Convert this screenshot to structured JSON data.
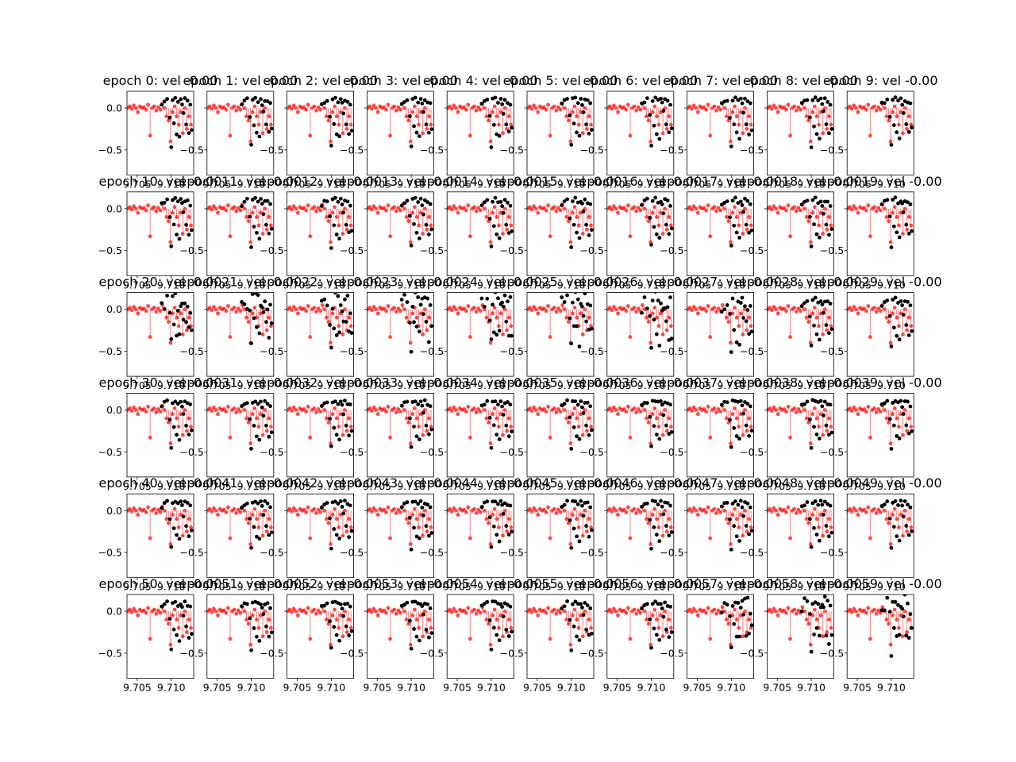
{
  "figure": {
    "background": "#ffffff",
    "truth_color": "#000000",
    "model_color": "#ff0000",
    "rows": 6,
    "cols": 10
  },
  "chart_data": {
    "type": "scatter",
    "grid": false,
    "xlim": [
      9.7035,
      9.7133
    ],
    "ylim": [
      -0.8,
      0.2
    ],
    "x_ticks": [
      9.705,
      9.71
    ],
    "x_tick_labels": [
      "9.705",
      "9.710"
    ],
    "y_ticks": [
      0.0,
      -0.5
    ],
    "left_tick_labels": [
      "0.0",
      "−0.5"
    ],
    "inner_tick_labels": [
      "−0.5"
    ],
    "inner_tick_values": [
      -0.5
    ],
    "epoch_title_prefix": "epoch ",
    "epoch_title_suffix": ": vel -0.00",
    "epochs": [
      0,
      1,
      2,
      3,
      4,
      5,
      6,
      7,
      8,
      9,
      10,
      11,
      12,
      13,
      14,
      15,
      16,
      17,
      18,
      19,
      20,
      21,
      22,
      23,
      24,
      25,
      26,
      27,
      28,
      29,
      30,
      31,
      32,
      33,
      34,
      35,
      36,
      37,
      38,
      39,
      40,
      41,
      42,
      43,
      44,
      45,
      46,
      47,
      48,
      49,
      50,
      51,
      52,
      53,
      54,
      55,
      56,
      57,
      58,
      59
    ],
    "titles": [
      "epoch 0: vel -0.00",
      "epoch 1: vel -0.00",
      "epoch 2: vel -0.00",
      "epoch 3: vel -0.00",
      "epoch 4: vel -0.00",
      "epoch 5: vel -0.00",
      "epoch 6: vel -0.00",
      "epoch 7: vel -0.00",
      "epoch 8: vel -0.00",
      "epoch 9: vel -0.00",
      "epoch 10: vel -0.00",
      "epoch 11: vel -0.00",
      "epoch 12: vel -0.00",
      "epoch 13: vel -0.00",
      "epoch 14: vel -0.00",
      "epoch 15: vel -0.00",
      "epoch 16: vel -0.00",
      "epoch 17: vel -0.00",
      "epoch 18: vel -0.00",
      "epoch 19: vel -0.00",
      "epoch 20: vel -0.00",
      "epoch 21: vel -0.00",
      "epoch 22: vel -0.00",
      "epoch 23: vel -0.00",
      "epoch 24: vel -0.00",
      "epoch 25: vel -0.00",
      "epoch 26: vel -0.00",
      "epoch 27: vel -0.00",
      "epoch 28: vel -0.00",
      "epoch 29: vel -0.00",
      "epoch 30: vel -0.00",
      "epoch 31: vel -0.00",
      "epoch 32: vel -0.00",
      "epoch 33: vel -0.00",
      "epoch 34: vel -0.00",
      "epoch 35: vel -0.00",
      "epoch 36: vel -0.00",
      "epoch 37: vel -0.00",
      "epoch 38: vel -0.00",
      "epoch 39: vel -0.00",
      "epoch 40: vel -0.00",
      "epoch 41: vel -0.00",
      "epoch 42: vel -0.00",
      "epoch 43: vel -0.00",
      "epoch 44: vel -0.00",
      "epoch 45: vel -0.00",
      "epoch 46: vel -0.00",
      "epoch 47: vel -0.00",
      "epoch 48: vel -0.00",
      "epoch 49: vel -0.00",
      "epoch 50: vel -0.00",
      "epoch 51: vel -0.00",
      "epoch 52: vel -0.00",
      "epoch 53: vel -0.00",
      "epoch 54: vel -0.00",
      "epoch 55: vel -0.00",
      "epoch 56: vel -0.00",
      "epoch 57: vel -0.00",
      "epoch 58: vel -0.00",
      "epoch 59: vel -0.00"
    ],
    "series": [
      {
        "role": "model",
        "color": "#ff0000",
        "x": [
          9.7036,
          9.7039,
          9.7042,
          9.7045,
          9.7048,
          9.7051,
          9.7054,
          9.7057,
          9.706,
          9.7063,
          9.7066,
          9.7069,
          9.7072,
          9.7075,
          9.7078,
          9.7081,
          9.7084,
          9.7087,
          9.709,
          9.7093,
          9.7096,
          9.7099,
          9.7102,
          9.7105,
          9.7108,
          9.7111,
          9.7114,
          9.7117,
          9.712,
          9.7123,
          9.7126,
          9.7129
        ],
        "y": [
          0.0,
          0.02,
          -0.01,
          0.03,
          0.0,
          -0.05,
          0.02,
          0.0,
          0.01,
          -0.02,
          0.04,
          -0.33,
          0.0,
          0.02,
          -0.03,
          0.01,
          -0.02,
          0.05,
          0.0,
          -0.1,
          -0.15,
          -0.4,
          -0.05,
          0.02,
          -0.1,
          -0.2,
          -0.05,
          -0.3,
          0.0,
          -0.25,
          -0.1,
          -0.2
        ]
      },
      {
        "role": "observed",
        "color": "#000000",
        "x": [
          9.7086,
          9.709,
          9.7094,
          9.7098,
          9.71,
          9.7102,
          9.7104,
          9.7106,
          9.7108,
          9.711,
          9.7112,
          9.7114,
          9.7116,
          9.7118,
          9.712,
          9.7122,
          9.7124,
          9.7126,
          9.7128,
          9.713
        ],
        "y": [
          0.05,
          0.08,
          0.1,
          -0.1,
          -0.45,
          0.1,
          -0.2,
          0.12,
          -0.3,
          0.08,
          -0.35,
          0.1,
          0.05,
          -0.05,
          0.1,
          -0.2,
          0.08,
          -0.3,
          0.05,
          -0.25
        ]
      }
    ]
  }
}
